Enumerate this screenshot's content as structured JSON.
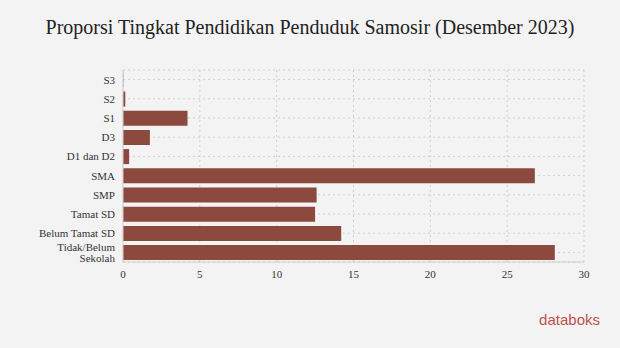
{
  "chart_data": {
    "type": "bar",
    "title": "Proporsi Tingkat Pendidikan Penduduk Samosir (Desember 2023)",
    "orientation": "horizontal",
    "categories": [
      "S3",
      "S2",
      "S1",
      "D3",
      "D1 dan D2",
      "SMA",
      "SMP",
      "Tamat SD",
      "Belum Tamat SD",
      "Tidak/Belum Sekolah"
    ],
    "values": [
      0.02,
      0.15,
      4.2,
      1.75,
      0.4,
      26.8,
      12.6,
      12.5,
      14.2,
      28.1
    ],
    "color": "#8b4a3d",
    "xlim": [
      0,
      30
    ],
    "xticks": [
      0,
      5,
      10,
      15,
      20,
      25,
      30
    ],
    "grid": true,
    "annotations": [
      "databoks"
    ]
  }
}
